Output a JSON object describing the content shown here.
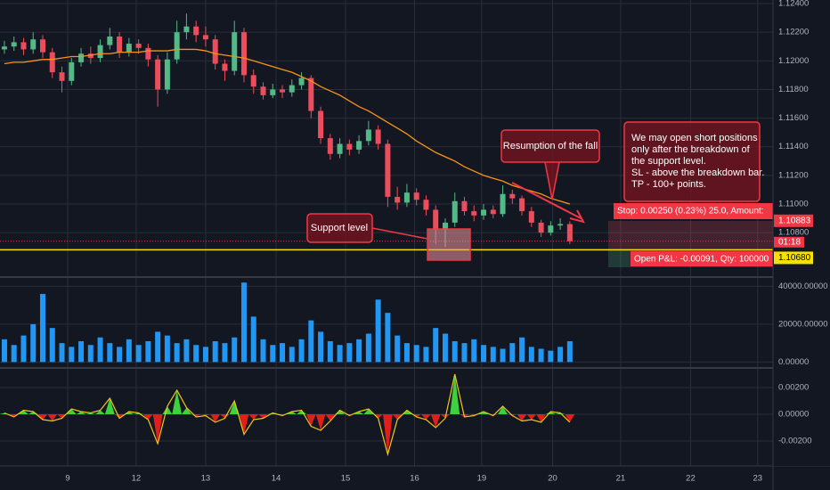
{
  "chart_data": {
    "type": "candlestick",
    "up_color": "#53b987",
    "down_color": "#eb4d5c",
    "grid": true,
    "ylim": [
      1.10496,
      1.12425
    ],
    "yticks": [
      {
        "value": 1.124,
        "label": "1.12400"
      },
      {
        "value": 1.122,
        "label": "1.12200"
      },
      {
        "value": 1.12,
        "label": "1.12000"
      },
      {
        "value": 1.118,
        "label": "1.11800"
      },
      {
        "value": 1.116,
        "label": "1.11600"
      },
      {
        "value": 1.114,
        "label": "1.11400"
      },
      {
        "value": 1.112,
        "label": "1.11200"
      },
      {
        "value": 1.11,
        "label": "1.11000"
      },
      {
        "value": 1.108,
        "label": "1.10800"
      }
    ],
    "xlim": [
      -0.46,
      80.2
    ],
    "xticks": [
      {
        "value": 6.6,
        "label": "9"
      },
      {
        "value": 13.75,
        "label": "12"
      },
      {
        "value": 21.0,
        "label": "13"
      },
      {
        "value": 28.35,
        "label": "14"
      },
      {
        "value": 35.6,
        "label": "15"
      },
      {
        "value": 42.8,
        "label": "16"
      },
      {
        "value": 49.8,
        "label": "19"
      },
      {
        "value": 57.2,
        "label": "20"
      },
      {
        "value": 64.3,
        "label": "21"
      },
      {
        "value": 71.6,
        "label": "22"
      },
      {
        "value": 78.6,
        "label": "23"
      }
    ],
    "candles": [
      [
        1.1208,
        1.1214,
        1.1205,
        1.121
      ],
      [
        1.121,
        1.1217,
        1.1207,
        1.1213
      ],
      [
        1.1213,
        1.1216,
        1.1204,
        1.1208
      ],
      [
        1.1208,
        1.122,
        1.1205,
        1.1215
      ],
      [
        1.1215,
        1.1218,
        1.1202,
        1.1206
      ],
      [
        1.1206,
        1.1209,
        1.1188,
        1.1192
      ],
      [
        1.1192,
        1.1196,
        1.1178,
        1.1186
      ],
      [
        1.1186,
        1.1202,
        1.1183,
        1.1199
      ],
      [
        1.1199,
        1.1209,
        1.1196,
        1.1205
      ],
      [
        1.1205,
        1.121,
        1.1198,
        1.1202
      ],
      [
        1.1202,
        1.1215,
        1.1199,
        1.1211
      ],
      [
        1.1211,
        1.1223,
        1.1208,
        1.1217
      ],
      [
        1.1217,
        1.122,
        1.1202,
        1.1206
      ],
      [
        1.1206,
        1.1216,
        1.1203,
        1.1212
      ],
      [
        1.1212,
        1.1215,
        1.1205,
        1.1209
      ],
      [
        1.1209,
        1.1212,
        1.1196,
        1.1201
      ],
      [
        1.1201,
        1.1204,
        1.1168,
        1.118
      ],
      [
        1.118,
        1.1206,
        1.1177,
        1.1201
      ],
      [
        1.1201,
        1.1228,
        1.1198,
        1.122
      ],
      [
        1.122,
        1.1233,
        1.1215,
        1.1224
      ],
      [
        1.1224,
        1.1228,
        1.1213,
        1.1218
      ],
      [
        1.1218,
        1.1224,
        1.121,
        1.1215
      ],
      [
        1.1215,
        1.1218,
        1.1194,
        1.1198
      ],
      [
        1.1198,
        1.1201,
        1.1186,
        1.1193
      ],
      [
        1.1193,
        1.1228,
        1.119,
        1.122
      ],
      [
        1.122,
        1.1223,
        1.1185,
        1.119
      ],
      [
        1.119,
        1.1194,
        1.1177,
        1.1182
      ],
      [
        1.1182,
        1.1185,
        1.1173,
        1.1176
      ],
      [
        1.1176,
        1.1184,
        1.1174,
        1.118
      ],
      [
        1.118,
        1.1183,
        1.1174,
        1.1178
      ],
      [
        1.1178,
        1.1187,
        1.1175,
        1.1183
      ],
      [
        1.1183,
        1.1192,
        1.118,
        1.1188
      ],
      [
        1.1188,
        1.119,
        1.116,
        1.1165
      ],
      [
        1.1165,
        1.1168,
        1.1142,
        1.1146
      ],
      [
        1.1146,
        1.1149,
        1.1131,
        1.1135
      ],
      [
        1.1135,
        1.1146,
        1.1132,
        1.1142
      ],
      [
        1.1142,
        1.1145,
        1.1134,
        1.1138
      ],
      [
        1.1138,
        1.1148,
        1.1135,
        1.1144
      ],
      [
        1.1144,
        1.1158,
        1.1141,
        1.1152
      ],
      [
        1.1152,
        1.1155,
        1.1138,
        1.1142
      ],
      [
        1.1142,
        1.1145,
        1.1098,
        1.1105
      ],
      [
        1.1105,
        1.1112,
        1.1096,
        1.1101
      ],
      [
        1.1101,
        1.1114,
        1.1098,
        1.1108
      ],
      [
        1.1108,
        1.1111,
        1.1099,
        1.1103
      ],
      [
        1.1103,
        1.1106,
        1.1092,
        1.1096
      ],
      [
        1.1096,
        1.1099,
        1.1072,
        1.1082
      ],
      [
        1.1082,
        1.109,
        1.107,
        1.1087
      ],
      [
        1.1087,
        1.1108,
        1.1084,
        1.1102
      ],
      [
        1.1102,
        1.1105,
        1.1092,
        1.1095
      ],
      [
        1.1095,
        1.1099,
        1.1088,
        1.1092
      ],
      [
        1.1092,
        1.11,
        1.1089,
        1.1096
      ],
      [
        1.1096,
        1.1099,
        1.109,
        1.1093
      ],
      [
        1.1093,
        1.1113,
        1.1091,
        1.1107
      ],
      [
        1.1107,
        1.111,
        1.11,
        1.1104
      ],
      [
        1.1104,
        1.1106,
        1.1092,
        1.1095
      ],
      [
        1.1095,
        1.1098,
        1.1084,
        1.1087
      ],
      [
        1.1087,
        1.1089,
        1.1077,
        1.108
      ],
      [
        1.108,
        1.1088,
        1.1078,
        1.1085
      ],
      [
        1.1085,
        1.109,
        1.1082,
        1.1086
      ],
      [
        1.1086,
        1.1088,
        1.1072,
        1.1074
      ]
    ],
    "ma": {
      "color": "#f7931a",
      "values": [
        1.1198,
        1.1199,
        1.1199,
        1.12,
        1.1201,
        1.1201,
        1.1202,
        1.1203,
        1.1203,
        1.1204,
        1.1205,
        1.1205,
        1.1206,
        1.1206,
        1.1206,
        1.1207,
        1.1207,
        1.1207,
        1.1208,
        1.1208,
        1.1208,
        1.1207,
        1.1205,
        1.1204,
        1.1203,
        1.1202,
        1.12,
        1.1198,
        1.1196,
        1.1194,
        1.1192,
        1.1189,
        1.1186,
        1.1182,
        1.1179,
        1.1176,
        1.1172,
        1.1168,
        1.1165,
        1.1161,
        1.1157,
        1.1153,
        1.1149,
        1.1144,
        1.114,
        1.1136,
        1.1133,
        1.113,
        1.1126,
        1.1123,
        1.112,
        1.1118,
        1.1116,
        1.1113,
        1.1111,
        1.1109,
        1.1107,
        1.1104,
        1.1102,
        1.11
      ]
    },
    "current_price": 1.1074,
    "countdown": "01:18",
    "stop_line": 1.10883,
    "support_line": {
      "value": 1.1068,
      "label": "1.10680"
    },
    "volume": {
      "color": "#2196f3",
      "ylim": [
        -2667,
        44444
      ],
      "yticks": [
        {
          "value": 0,
          "label": "0.00000"
        },
        {
          "value": 20000,
          "label": "20000.00000"
        },
        {
          "value": 40000,
          "label": "40000.00000"
        }
      ],
      "values": [
        12000,
        9000,
        14000,
        20000,
        36000,
        18000,
        10000,
        8000,
        11000,
        9000,
        13000,
        10000,
        8000,
        12000,
        9000,
        11000,
        16000,
        14000,
        10000,
        12000,
        9000,
        8000,
        11000,
        10000,
        13000,
        42000,
        24000,
        12000,
        9000,
        10000,
        8000,
        12000,
        22000,
        16000,
        11000,
        9000,
        10000,
        12000,
        15000,
        33000,
        26000,
        14000,
        10000,
        9000,
        8000,
        18000,
        15000,
        11000,
        10000,
        12000,
        9000,
        8000,
        7000,
        10000,
        13000,
        8000,
        7000,
        6000,
        8000,
        11000
      ]
    },
    "oscillator": {
      "up_color": "#3dd13d",
      "down_color": "#e01e1e",
      "line_color": "#f5c518",
      "ylim": [
        -0.0038,
        0.0034
      ],
      "yticks": [
        {
          "value": 0.002,
          "label": "0.00200"
        },
        {
          "value": 0,
          "label": "0.00000"
        },
        {
          "value": -0.002,
          "label": "-0.00200"
        }
      ],
      "values": [
        0.0001,
        -0.0002,
        0.0003,
        0.0002,
        -0.0004,
        -0.0005,
        -0.0003,
        0.0004,
        0.0002,
        0.0001,
        0.0003,
        0.0012,
        -0.0003,
        0.0002,
        0.0001,
        -0.0004,
        -0.0022,
        0.0006,
        0.0018,
        0.0005,
        -0.0002,
        -0.0001,
        -0.0006,
        -0.0003,
        0.001,
        -0.0015,
        -0.0004,
        -0.0003,
        0.0001,
        -0.0001,
        0.0002,
        0.0003,
        -0.0009,
        -0.0012,
        -0.0005,
        0.0003,
        -0.0001,
        0.0002,
        0.0004,
        -0.0003,
        -0.003,
        -0.0004,
        0.0003,
        -0.0002,
        -0.0004,
        -0.001,
        -0.0003,
        0.003,
        -0.0002,
        -0.0001,
        0.0002,
        -0.0001,
        0.0006,
        -0.0001,
        -0.0005,
        -0.0004,
        -0.0006,
        0.0002,
        0.0001,
        -0.0006
      ]
    }
  },
  "annotations": {
    "support": "Support level",
    "resumption": "Resumption of the fall",
    "note": [
      "We may open short positions",
      "only after the breakdown of",
      "the support level.",
      "SL - above the breakdown bar.",
      "TP - 100+ points."
    ],
    "stop": "Stop: 0.00250 (0.23%) 25.0, Amount:",
    "pnl": "Open P&L: -0.00091, Qty: 100000"
  }
}
